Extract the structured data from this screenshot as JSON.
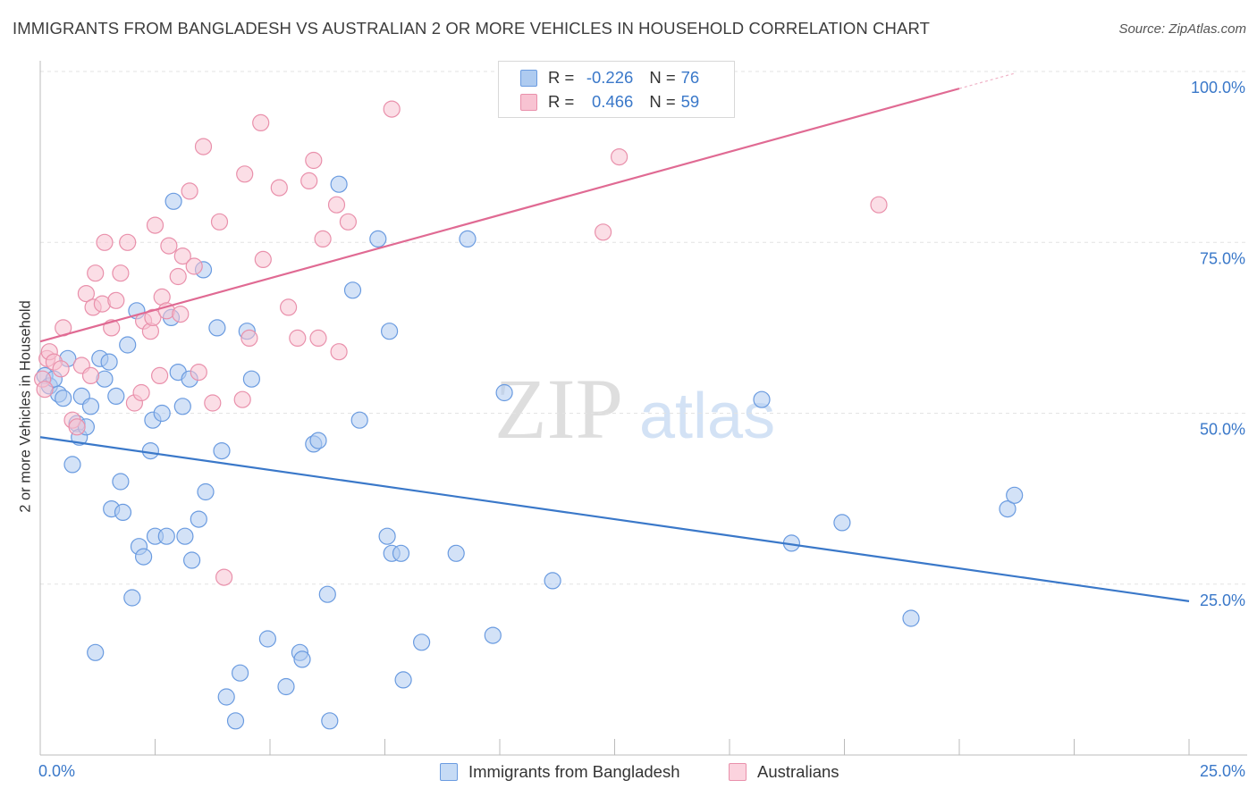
{
  "header": {
    "title": "IMMIGRANTS FROM BANGLADESH VS AUSTRALIAN 2 OR MORE VEHICLES IN HOUSEHOLD CORRELATION CHART",
    "source": "Source: ZipAtlas.com"
  },
  "watermark": {
    "zip": "ZIP",
    "atlas": "atlas"
  },
  "legend": {
    "r_label": "R =",
    "n_label": "N =",
    "rows": [
      {
        "r": "-0.226",
        "n": "76",
        "fill": "#aecbf0",
        "stroke": "#6a9be0"
      },
      {
        "r": "0.466",
        "n": "59",
        "fill": "#f8c3d2",
        "stroke": "#e990ab"
      }
    ]
  },
  "bottom_legend": [
    {
      "label": "Immigrants from Bangladesh"
    },
    {
      "label": "Australians"
    }
  ],
  "chart_data": {
    "type": "scatter",
    "title": "IMMIGRANTS FROM BANGLADESH VS AUSTRALIAN 2 OR MORE VEHICLES IN HOUSEHOLD CORRELATION CHART",
    "xlabel": "",
    "ylabel": "2 or more Vehicles in Household",
    "xlim": [
      0,
      25
    ],
    "ylim": [
      0,
      100
    ],
    "x_tick_labels": [
      "0.0%",
      "25.0%"
    ],
    "y_ticks": [
      25,
      50,
      75,
      100
    ],
    "y_tick_labels": [
      "25.0%",
      "50.0%",
      "75.0%",
      "100.0%"
    ],
    "grid": true,
    "legend_position": "top-center",
    "colors": {
      "blue": "#3a78c9",
      "pink": "#e06a93",
      "blue_fill": "#aecbf0",
      "pink_fill": "#f8c3d2"
    },
    "series": [
      {
        "name": "Immigrants from Bangladesh",
        "color": "#3a78c9",
        "trend": {
          "x0": 0,
          "y0": 46.5,
          "x1": 25,
          "y1": 22.5
        },
        "points": [
          [
            0.1,
            55.5
          ],
          [
            0.2,
            54.0
          ],
          [
            0.3,
            55.0
          ],
          [
            0.4,
            52.8
          ],
          [
            0.5,
            52.2
          ],
          [
            0.6,
            58.0
          ],
          [
            0.7,
            42.5
          ],
          [
            0.8,
            48.5
          ],
          [
            0.85,
            46.5
          ],
          [
            0.9,
            52.5
          ],
          [
            1.0,
            48.0
          ],
          [
            1.1,
            51.0
          ],
          [
            1.2,
            15.0
          ],
          [
            1.3,
            58.0
          ],
          [
            1.4,
            55.0
          ],
          [
            1.5,
            57.5
          ],
          [
            1.55,
            36.0
          ],
          [
            1.65,
            52.5
          ],
          [
            1.75,
            40.0
          ],
          [
            1.8,
            35.5
          ],
          [
            1.9,
            60.0
          ],
          [
            2.0,
            23.0
          ],
          [
            2.1,
            65.0
          ],
          [
            2.15,
            30.5
          ],
          [
            2.25,
            29.0
          ],
          [
            2.4,
            44.5
          ],
          [
            2.45,
            49.0
          ],
          [
            2.5,
            32.0
          ],
          [
            2.65,
            50.0
          ],
          [
            2.75,
            32.0
          ],
          [
            2.85,
            64.0
          ],
          [
            2.9,
            81.0
          ],
          [
            3.0,
            56.0
          ],
          [
            3.1,
            51.0
          ],
          [
            3.15,
            32.0
          ],
          [
            3.25,
            55.0
          ],
          [
            3.3,
            28.5
          ],
          [
            3.45,
            34.5
          ],
          [
            3.55,
            71.0
          ],
          [
            3.6,
            38.5
          ],
          [
            3.85,
            62.5
          ],
          [
            3.95,
            44.5
          ],
          [
            4.05,
            8.5
          ],
          [
            4.25,
            5.0
          ],
          [
            4.35,
            12.0
          ],
          [
            4.5,
            62.0
          ],
          [
            4.6,
            55.0
          ],
          [
            4.95,
            17.0
          ],
          [
            5.35,
            10.0
          ],
          [
            5.65,
            15.0
          ],
          [
            5.7,
            14.0
          ],
          [
            5.95,
            45.5
          ],
          [
            6.05,
            46.0
          ],
          [
            6.25,
            23.5
          ],
          [
            6.3,
            5.0
          ],
          [
            6.5,
            83.5
          ],
          [
            6.8,
            68.0
          ],
          [
            6.95,
            49.0
          ],
          [
            7.35,
            75.5
          ],
          [
            7.6,
            62.0
          ],
          [
            7.55,
            32.0
          ],
          [
            7.65,
            29.5
          ],
          [
            7.85,
            29.5
          ],
          [
            7.9,
            11.0
          ],
          [
            8.3,
            16.5
          ],
          [
            9.05,
            29.5
          ],
          [
            9.3,
            75.5
          ],
          [
            9.85,
            17.5
          ],
          [
            10.1,
            53.0
          ],
          [
            11.15,
            25.5
          ],
          [
            15.7,
            52.0
          ],
          [
            16.35,
            31.0
          ],
          [
            17.45,
            34.0
          ],
          [
            18.95,
            20.0
          ],
          [
            21.05,
            36.0
          ],
          [
            21.2,
            38.0
          ]
        ]
      },
      {
        "name": "Australians",
        "color": "#e06a93",
        "trend": {
          "x0": 0,
          "y0": 60.5,
          "x1": 20,
          "y1": 97.5,
          "dash_x1": 21.2
        },
        "points": [
          [
            0.05,
            55.0
          ],
          [
            0.1,
            53.5
          ],
          [
            0.15,
            58.0
          ],
          [
            0.2,
            59.0
          ],
          [
            0.3,
            57.5
          ],
          [
            0.45,
            56.5
          ],
          [
            0.5,
            62.5
          ],
          [
            0.7,
            49.0
          ],
          [
            0.8,
            48.0
          ],
          [
            0.9,
            57.0
          ],
          [
            1.0,
            67.5
          ],
          [
            1.1,
            55.5
          ],
          [
            1.15,
            65.5
          ],
          [
            1.2,
            70.5
          ],
          [
            1.35,
            66.0
          ],
          [
            1.4,
            75.0
          ],
          [
            1.55,
            62.5
          ],
          [
            1.65,
            66.5
          ],
          [
            1.75,
            70.5
          ],
          [
            1.9,
            75.0
          ],
          [
            2.05,
            51.5
          ],
          [
            2.2,
            53.0
          ],
          [
            2.25,
            63.5
          ],
          [
            2.4,
            62.0
          ],
          [
            2.45,
            64.0
          ],
          [
            2.5,
            77.5
          ],
          [
            2.6,
            55.5
          ],
          [
            2.65,
            67.0
          ],
          [
            2.75,
            65.0
          ],
          [
            2.8,
            74.5
          ],
          [
            3.0,
            70.0
          ],
          [
            3.05,
            64.5
          ],
          [
            3.1,
            73.0
          ],
          [
            3.25,
            82.5
          ],
          [
            3.35,
            71.5
          ],
          [
            3.45,
            56.0
          ],
          [
            3.55,
            89.0
          ],
          [
            3.75,
            51.5
          ],
          [
            3.9,
            78.0
          ],
          [
            4.0,
            26.0
          ],
          [
            4.4,
            52.0
          ],
          [
            4.45,
            85.0
          ],
          [
            4.55,
            61.0
          ],
          [
            4.8,
            92.5
          ],
          [
            4.85,
            72.5
          ],
          [
            5.2,
            83.0
          ],
          [
            5.4,
            65.5
          ],
          [
            5.6,
            61.0
          ],
          [
            5.85,
            84.0
          ],
          [
            5.95,
            87.0
          ],
          [
            6.05,
            61.0
          ],
          [
            6.15,
            75.5
          ],
          [
            6.45,
            80.5
          ],
          [
            6.5,
            59.0
          ],
          [
            6.7,
            78.0
          ],
          [
            7.65,
            94.5
          ],
          [
            12.25,
            76.5
          ],
          [
            12.6,
            87.5
          ],
          [
            18.25,
            80.5
          ]
        ]
      }
    ]
  }
}
